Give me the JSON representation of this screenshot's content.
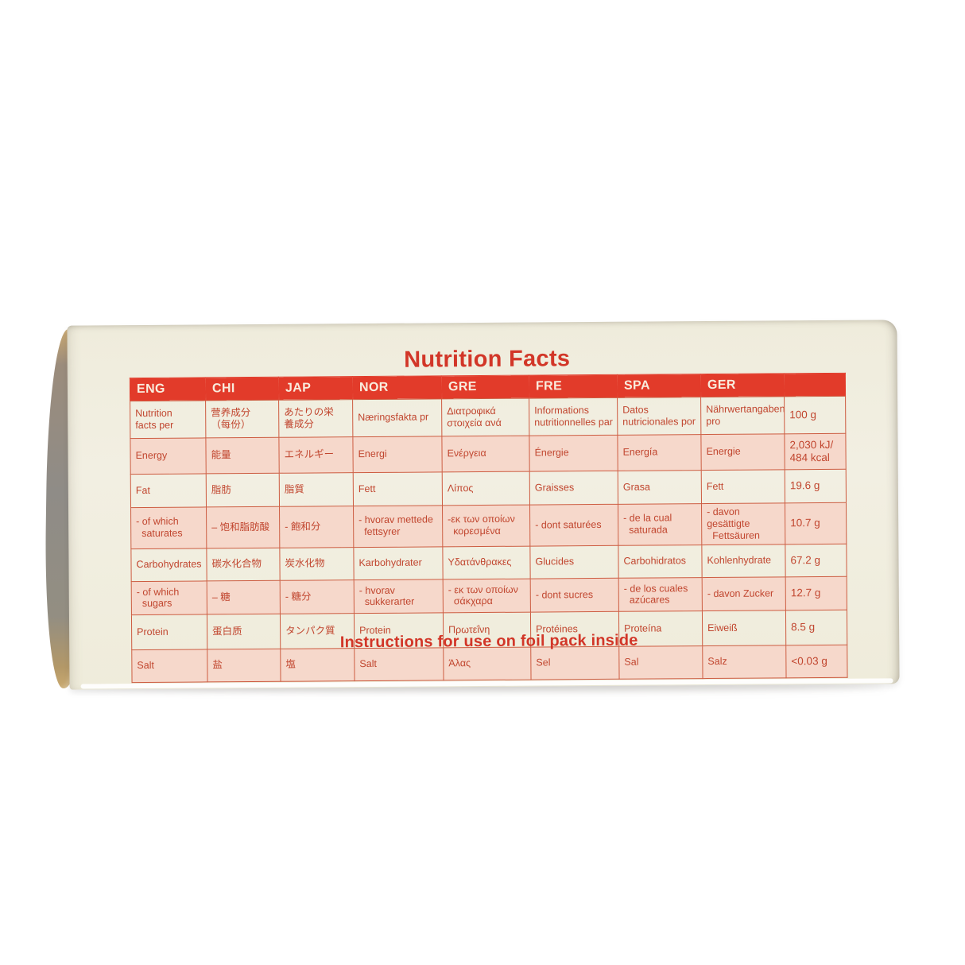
{
  "title": "Nutrition Facts",
  "footer": "Instructions for use on foil pack inside",
  "colors": {
    "header_bg": "#e23b2a",
    "text_red": "#c1462f",
    "row_pink": "#f6d8cb",
    "box_cream": "#f0edde"
  },
  "table": {
    "headers": [
      "ENG",
      "CHI",
      "JAP",
      "NOR",
      "GRE",
      "FRE",
      "SPA",
      "GER",
      ""
    ],
    "rows": [
      {
        "shaded": false,
        "cells": [
          "Nutrition\nfacts per",
          "营养成分\n（每份）",
          "あたりの栄\n養成分",
          "Næringsfakta pr",
          "Διατροφικά\nστοιχεία ανά",
          "Informations\nnutritionnelles par",
          "Datos\nnutricionales por",
          "Nährwertangaben\npro",
          "100 g"
        ]
      },
      {
        "shaded": true,
        "cells": [
          "Energy",
          "能量",
          "エネルギー",
          "Energi",
          "Ενέργεια",
          "Énergie",
          "Energía",
          "Energie",
          "2,030 kJ/\n484 kcal"
        ]
      },
      {
        "shaded": false,
        "cells": [
          "Fat",
          "脂肪",
          "脂質",
          "Fett",
          "Λίπος",
          "Graisses",
          "Grasa",
          "Fett",
          "19.6 g"
        ]
      },
      {
        "shaded": true,
        "cells": [
          "- of which\n  saturates",
          "– 饱和脂肪酸",
          "- 飽和分",
          "- hvorav mettede\n  fettsyrer",
          "-εκ των οποίων\n  κορεσμένα",
          "- dont saturées",
          "- de la cual\n  saturada",
          "- davon gesättigte\n  Fettsäuren",
          "10.7 g"
        ]
      },
      {
        "shaded": false,
        "cells": [
          "Carbohydrates",
          "碳水化合物",
          "炭水化物",
          "Karbohydrater",
          "Υδατάνθρακες",
          "Glucides",
          "Carbohidratos",
          "Kohlenhydrate",
          "67.2 g"
        ]
      },
      {
        "shaded": true,
        "cells": [
          "- of which\n  sugars",
          "– 糖",
          "- 糖分",
          "- hvorav\n  sukkerarter",
          "- εκ των οποίων\n  σάκχαρα",
          "- dont sucres",
          "- de los cuales\n  azúcares",
          "- davon Zucker",
          "12.7 g"
        ]
      },
      {
        "shaded": false,
        "cells": [
          "Protein",
          "蛋白质",
          "タンパク質",
          "Protein",
          "Πρωτεΐνη",
          "Protéines",
          "Proteína",
          "Eiweiß",
          "8.5 g"
        ]
      },
      {
        "shaded": true,
        "cells": [
          "Salt",
          "盐",
          "塩",
          "Salt",
          "Άλας",
          "Sel",
          "Sal",
          "Salz",
          "<0.03 g"
        ]
      }
    ]
  }
}
